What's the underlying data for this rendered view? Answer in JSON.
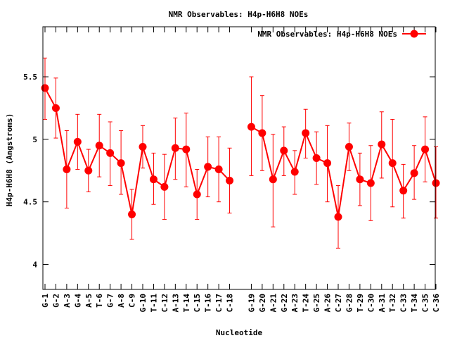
{
  "chart_data": {
    "type": "line",
    "title": "NMR Observables: H4p-H6H8 NOEs",
    "xlabel": "Nucleotide",
    "ylabel": "H4p-H6H8 (Angstroms)",
    "ylim": [
      3.8,
      5.9
    ],
    "yticks": [
      "4",
      "4.5",
      "5",
      "5.5"
    ],
    "yticks_values": [
      4,
      4.5,
      5,
      5.5
    ],
    "grid": false,
    "legend_position": "top-right",
    "series": [
      {
        "name": "NMR Observables: H4p-H6H8 NOEs",
        "color": "#ff0000",
        "segments": [
          {
            "categories": [
              "G-1",
              "G-2",
              "A-3",
              "G-4",
              "A-5",
              "T-6",
              "G-7",
              "A-8",
              "C-9",
              "G-10",
              "T-11",
              "C-12",
              "A-13",
              "T-14",
              "C-15",
              "T-16",
              "C-17",
              "C-18"
            ],
            "values": [
              5.41,
              5.25,
              4.76,
              4.98,
              4.75,
              4.95,
              4.89,
              4.81,
              4.4,
              4.94,
              4.68,
              4.62,
              4.93,
              4.92,
              4.56,
              4.78,
              4.76,
              4.67
            ],
            "error_low": [
              5.16,
              5.01,
              4.45,
              4.76,
              4.58,
              4.7,
              4.63,
              4.56,
              4.2,
              4.77,
              4.48,
              4.36,
              4.68,
              4.62,
              4.36,
              4.54,
              4.5,
              4.41
            ],
            "error_high": [
              5.65,
              5.49,
              5.07,
              5.2,
              4.92,
              5.2,
              5.14,
              5.07,
              4.6,
              5.11,
              4.89,
              4.88,
              5.17,
              5.21,
              4.76,
              5.02,
              5.02,
              4.93
            ]
          },
          {
            "categories": [
              "G-19",
              "G-20",
              "A-21",
              "G-22",
              "A-23",
              "T-24",
              "G-25",
              "A-26",
              "C-27",
              "G-28",
              "T-29",
              "C-30",
              "A-31",
              "T-32",
              "C-33",
              "T-34",
              "C-35",
              "C-36"
            ],
            "values": [
              5.1,
              5.05,
              4.68,
              4.91,
              4.74,
              5.05,
              4.85,
              4.81,
              4.38,
              4.94,
              4.68,
              4.65,
              4.96,
              4.81,
              4.59,
              4.73,
              4.92,
              4.65
            ],
            "error_low": [
              4.71,
              4.75,
              4.3,
              4.71,
              4.56,
              4.85,
              4.64,
              4.5,
              4.13,
              4.75,
              4.47,
              4.35,
              4.69,
              4.46,
              4.37,
              4.52,
              4.66,
              4.37
            ],
            "error_high": [
              5.5,
              5.35,
              5.04,
              5.1,
              4.91,
              5.24,
              5.06,
              5.11,
              4.63,
              5.13,
              4.89,
              4.95,
              5.22,
              5.16,
              4.8,
              4.95,
              5.18,
              4.94
            ]
          }
        ]
      }
    ]
  }
}
